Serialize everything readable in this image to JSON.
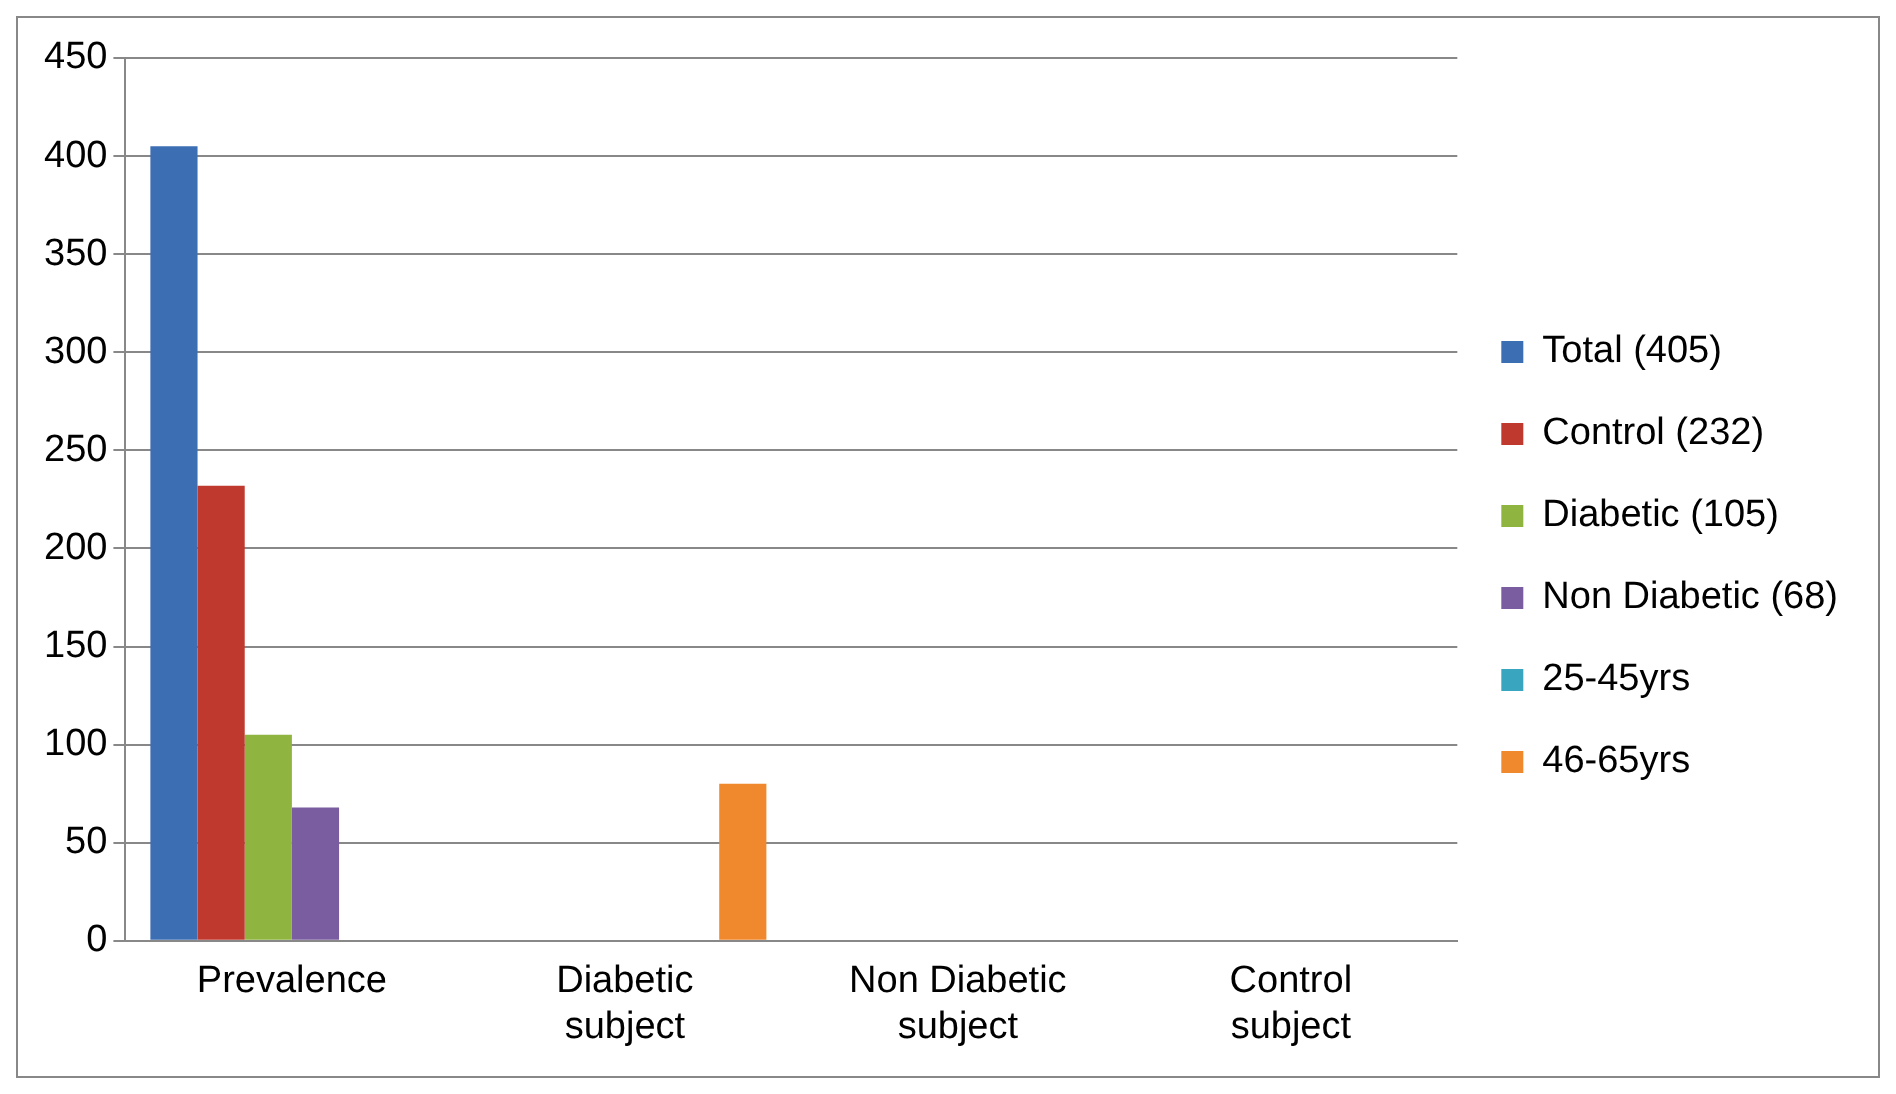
{
  "chart_data": {
    "type": "bar",
    "categories": [
      "Prevalence",
      "Diabetic subject",
      "Non Diabetic subject",
      "Control subject"
    ],
    "series": [
      {
        "name": "Total (405)",
        "color": "#3c6eb4",
        "values": [
          405,
          null,
          null,
          null
        ]
      },
      {
        "name": "Control (232)",
        "color": "#c0392f",
        "values": [
          232,
          null,
          null,
          null
        ]
      },
      {
        "name": "Diabetic (105)",
        "color": "#8fb440",
        "values": [
          105,
          null,
          null,
          null
        ]
      },
      {
        "name": "Non Diabetic (68)",
        "color": "#7a5ca0",
        "values": [
          68,
          null,
          null,
          null
        ]
      },
      {
        "name": "25-45yrs",
        "color": "#3aa5bf",
        "values": [
          null,
          null,
          null,
          null
        ]
      },
      {
        "name": "46-65yrs",
        "color": "#f0892e",
        "values": [
          null,
          80,
          null,
          null
        ]
      }
    ],
    "ylim": [
      0,
      450
    ],
    "yticks": [
      0,
      50,
      100,
      150,
      200,
      250,
      300,
      350,
      400,
      450
    ],
    "grid": "y",
    "legend": "right"
  }
}
